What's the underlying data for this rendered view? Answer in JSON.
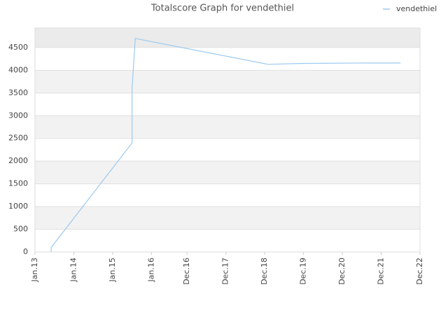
{
  "chart_data": {
    "type": "line",
    "title": "Totalscore Graph for vendethiel",
    "x": [
      "2013-06",
      "2013-06",
      "2015-07",
      "2015-07",
      "2015-07",
      "2015-08",
      "2019-01",
      "2019-11",
      "2021-07",
      "2022-06"
    ],
    "series": [
      {
        "name": "vendethiel",
        "color": "#9ccaf0",
        "values": [
          0,
          100,
          2400,
          2500,
          3600,
          4700,
          4130,
          4150,
          4160,
          4160
        ]
      }
    ],
    "xlim": [
      "2013-01",
      "2022-12"
    ],
    "xticks": [
      {
        "value": "2013-01",
        "label": "Jan.13"
      },
      {
        "value": "2014-01",
        "label": "Jan.14"
      },
      {
        "value": "2015-01",
        "label": "Jan.15"
      },
      {
        "value": "2016-01",
        "label": "Jan.16"
      },
      {
        "value": "2016-12",
        "label": "Dec.16"
      },
      {
        "value": "2017-12",
        "label": "Dec.17"
      },
      {
        "value": "2018-12",
        "label": "Dec.18"
      },
      {
        "value": "2019-12",
        "label": "Dec.19"
      },
      {
        "value": "2020-12",
        "label": "Dec.20"
      },
      {
        "value": "2021-12",
        "label": "Dec.21"
      },
      {
        "value": "2022-12",
        "label": "Dec.22"
      }
    ],
    "ylim": [
      0,
      4930
    ],
    "yticks": [
      0,
      500,
      1000,
      1500,
      2000,
      2500,
      3000,
      3500,
      4000,
      4500
    ],
    "legend": "top-right",
    "grid": true
  }
}
